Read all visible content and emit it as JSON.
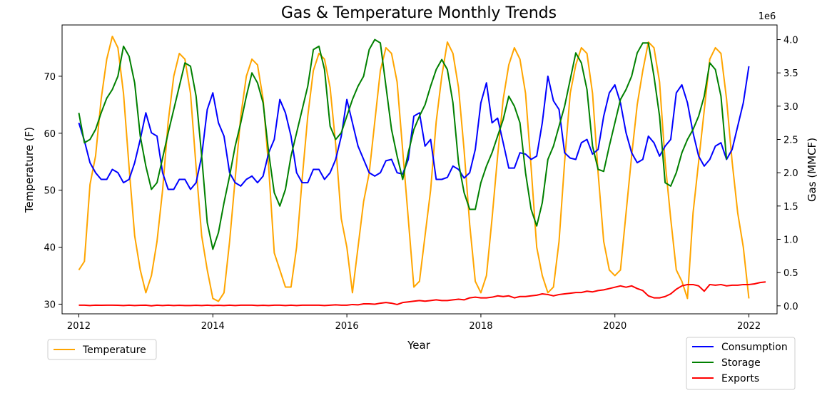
{
  "chart_data": {
    "type": "line",
    "title": "Gas & Temperature Monthly Trends",
    "xlabel": "Year",
    "ylabel_left": "Temperature (F)",
    "ylabel_right": "Gas (MMCF)",
    "right_axis_offset_label": "1e6",
    "xlim": [
      2011.75,
      2022.42
    ],
    "ylim_left": [
      28.3,
      79.0
    ],
    "ylim_right": [
      -0.12,
      4.22
    ],
    "x_ticks": [
      2012,
      2014,
      2016,
      2018,
      2020,
      2022
    ],
    "x_tick_labels": [
      "2012",
      "2014",
      "2016",
      "2018",
      "2020",
      "2022"
    ],
    "y_left_ticks": [
      30,
      40,
      50,
      60,
      70
    ],
    "y_left_tick_labels": [
      "30",
      "40",
      "50",
      "60",
      "70"
    ],
    "y_right_ticks": [
      0,
      0.5,
      1.0,
      1.5,
      2.0,
      2.5,
      3.0,
      3.5,
      4.0
    ],
    "y_right_tick_labels": [
      "0.0",
      "0.5",
      "1.0",
      "1.5",
      "2.0",
      "2.5",
      "3.0",
      "3.5",
      "4.0"
    ],
    "grid": false,
    "legend_left": {
      "placement": "below-left"
    },
    "legend_right": {
      "placement": "below-right"
    },
    "series": [
      {
        "name": "Temperature",
        "axis": "left",
        "color": "#FFA500",
        "x_start": 2012.0,
        "step_years": 0.08333,
        "values": [
          36,
          37.5,
          51,
          56,
          66,
          73,
          77,
          75,
          67,
          54,
          42,
          36,
          32,
          35,
          41,
          50,
          62,
          70,
          74,
          73,
          67,
          54,
          42,
          36,
          31,
          30.5,
          32,
          41,
          52,
          63,
          70,
          73,
          72,
          66,
          54,
          39,
          36,
          33,
          33,
          40,
          52,
          63,
          71,
          74,
          73,
          68,
          58,
          45,
          40,
          32,
          40,
          48,
          53,
          62,
          71,
          75,
          74,
          69,
          57,
          45,
          33,
          34,
          42,
          50,
          62,
          70,
          76,
          74,
          68,
          57,
          44,
          34,
          32,
          35,
          45,
          56,
          66,
          72,
          75,
          73,
          67,
          54,
          40,
          35,
          32,
          33,
          41,
          55,
          67,
          72,
          75,
          74,
          67,
          53,
          41,
          36,
          35,
          36,
          46,
          56,
          65,
          71,
          76,
          75,
          69,
          55,
          45,
          36,
          34,
          31,
          46,
          55,
          64,
          73,
          75,
          74,
          66,
          55,
          46,
          40,
          31
        ]
      },
      {
        "name": "Consumption",
        "axis": "right",
        "color": "#0000FF",
        "x_start": 2012.0,
        "step_years": 0.08333,
        "values": [
          2.75,
          2.48,
          2.15,
          2.0,
          1.9,
          1.9,
          2.05,
          2.0,
          1.85,
          1.9,
          2.15,
          2.5,
          2.9,
          2.6,
          2.55,
          2.0,
          1.75,
          1.75,
          1.9,
          1.9,
          1.75,
          1.85,
          2.25,
          2.95,
          3.2,
          2.75,
          2.55,
          2.0,
          1.85,
          1.8,
          1.9,
          1.95,
          1.85,
          1.95,
          2.3,
          2.5,
          3.1,
          2.9,
          2.55,
          2.0,
          1.85,
          1.85,
          2.05,
          2.05,
          1.9,
          2.0,
          2.2,
          2.55,
          3.1,
          2.75,
          2.4,
          2.2,
          2.0,
          1.95,
          2.0,
          2.18,
          2.2,
          2.0,
          1.98,
          2.2,
          2.85,
          2.9,
          2.4,
          2.5,
          1.9,
          1.9,
          1.93,
          2.1,
          2.05,
          1.92,
          2.0,
          2.35,
          3.05,
          3.35,
          2.75,
          2.82,
          2.45,
          2.07,
          2.07,
          2.3,
          2.28,
          2.2,
          2.25,
          2.75,
          3.45,
          3.08,
          2.95,
          2.3,
          2.22,
          2.2,
          2.45,
          2.5,
          2.28,
          2.35,
          2.85,
          3.2,
          3.32,
          3.05,
          2.6,
          2.3,
          2.15,
          2.2,
          2.55,
          2.45,
          2.25,
          2.4,
          2.5,
          3.2,
          3.32,
          3.05,
          2.6,
          2.25,
          2.1,
          2.2,
          2.4,
          2.45,
          2.2,
          2.35,
          2.7,
          3.05,
          3.6
        ]
      },
      {
        "name": "Storage",
        "axis": "right",
        "color": "#008000",
        "x_start": 2012.0,
        "step_years": 0.08333,
        "values": [
          2.9,
          2.45,
          2.5,
          2.65,
          2.9,
          3.12,
          3.25,
          3.45,
          3.9,
          3.75,
          3.35,
          2.55,
          2.1,
          1.75,
          1.85,
          2.22,
          2.6,
          2.95,
          3.3,
          3.65,
          3.6,
          3.15,
          2.25,
          1.25,
          0.85,
          1.1,
          1.55,
          1.95,
          2.4,
          2.75,
          3.15,
          3.5,
          3.35,
          3.05,
          2.3,
          1.7,
          1.5,
          1.75,
          2.25,
          2.6,
          2.95,
          3.3,
          3.85,
          3.9,
          3.55,
          2.7,
          2.5,
          2.6,
          2.85,
          3.1,
          3.3,
          3.45,
          3.85,
          4.0,
          3.95,
          3.3,
          2.65,
          2.25,
          1.9,
          2.3,
          2.65,
          2.85,
          3.02,
          3.3,
          3.55,
          3.7,
          3.55,
          3.05,
          2.15,
          1.7,
          1.45,
          1.45,
          1.85,
          2.1,
          2.3,
          2.55,
          2.8,
          3.15,
          3.0,
          2.75,
          2.0,
          1.45,
          1.2,
          1.55,
          2.2,
          2.4,
          2.7,
          3.0,
          3.4,
          3.8,
          3.65,
          3.25,
          2.4,
          2.05,
          2.02,
          2.4,
          2.75,
          3.1,
          3.25,
          3.45,
          3.8,
          3.95,
          3.95,
          3.45,
          2.85,
          1.85,
          1.8,
          2.0,
          2.3,
          2.5,
          2.65,
          2.85,
          3.15,
          3.65,
          3.55,
          3.15,
          2.2
        ]
      },
      {
        "name": "Exports",
        "axis": "right",
        "color": "#FF0000",
        "x_start": 2012.0,
        "step_years": 0.08333,
        "values": [
          0.01,
          0.01,
          0.005,
          0.01,
          0.008,
          0.01,
          0.01,
          0.008,
          0.005,
          0.01,
          0.005,
          0.008,
          0.01,
          0.0,
          0.01,
          0.005,
          0.01,
          0.005,
          0.008,
          0.005,
          0.005,
          0.008,
          0.005,
          0.01,
          0.005,
          0.008,
          0.005,
          0.01,
          0.005,
          0.01,
          0.01,
          0.01,
          0.005,
          0.008,
          0.005,
          0.01,
          0.01,
          0.005,
          0.01,
          0.005,
          0.01,
          0.01,
          0.01,
          0.01,
          0.005,
          0.01,
          0.015,
          0.01,
          0.01,
          0.02,
          0.015,
          0.03,
          0.03,
          0.025,
          0.04,
          0.05,
          0.04,
          0.02,
          0.05,
          0.06,
          0.07,
          0.08,
          0.07,
          0.08,
          0.09,
          0.08,
          0.08,
          0.09,
          0.1,
          0.09,
          0.12,
          0.13,
          0.12,
          0.12,
          0.13,
          0.15,
          0.14,
          0.15,
          0.12,
          0.14,
          0.14,
          0.15,
          0.16,
          0.18,
          0.17,
          0.15,
          0.17,
          0.18,
          0.19,
          0.2,
          0.2,
          0.22,
          0.21,
          0.23,
          0.24,
          0.26,
          0.28,
          0.3,
          0.28,
          0.3,
          0.26,
          0.23,
          0.15,
          0.12,
          0.12,
          0.14,
          0.18,
          0.25,
          0.3,
          0.32,
          0.32,
          0.3,
          0.22,
          0.32,
          0.31,
          0.32,
          0.3,
          0.31,
          0.31,
          0.32,
          0.32,
          0.33,
          0.35,
          0.36
        ]
      }
    ]
  },
  "legend_left_items": [
    "Temperature"
  ],
  "legend_right_items": [
    "Consumption",
    "Storage",
    "Exports"
  ]
}
